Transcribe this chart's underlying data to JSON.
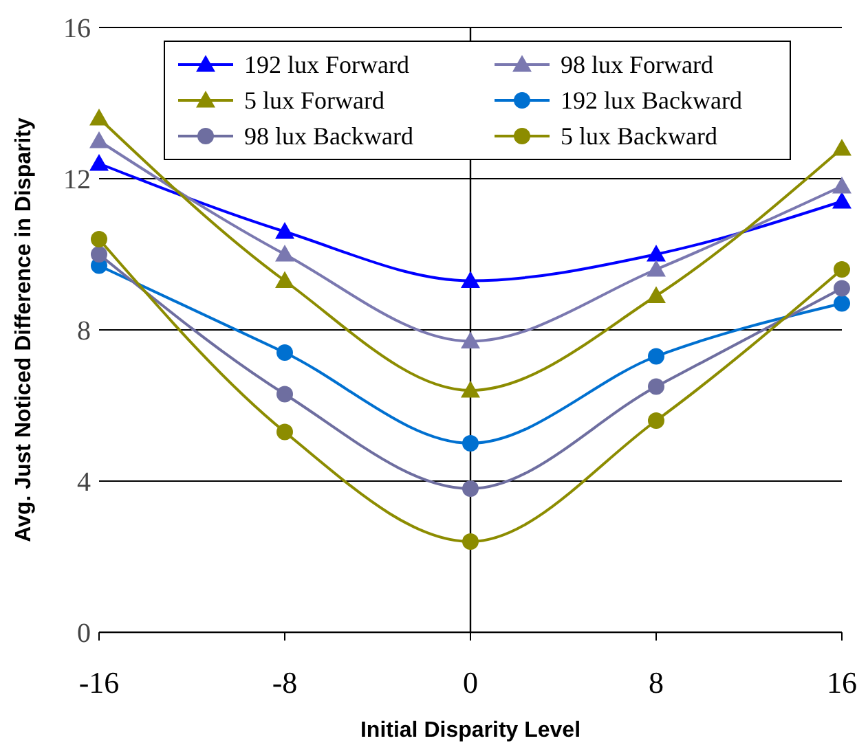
{
  "chart_data": {
    "type": "line",
    "xlabel": "Initial Disparity Level",
    "ylabel": "Avg. Just Noticed Difference in Disparity",
    "x": [
      -16,
      -8,
      0,
      8,
      16
    ],
    "xlim": [
      -16,
      16
    ],
    "xticks": [
      -16,
      -8,
      0,
      8,
      16
    ],
    "ylim": [
      0,
      16
    ],
    "yticks": [
      0,
      4,
      8,
      12,
      16
    ],
    "grid": "y",
    "legend": "top",
    "series": [
      {
        "name": "192 lux Forward",
        "color": "#0000ff",
        "marker": "triangle",
        "values": [
          12.4,
          10.6,
          9.3,
          10.0,
          11.4
        ]
      },
      {
        "name": "98 lux Forward",
        "color": "#7a78b0",
        "marker": "triangle",
        "values": [
          13.0,
          10.0,
          7.7,
          9.6,
          11.8
        ]
      },
      {
        "name": "5 lux Forward",
        "color": "#8c8c00",
        "marker": "triangle",
        "values": [
          13.6,
          9.3,
          6.4,
          8.9,
          12.8
        ]
      },
      {
        "name": "192 lux Backward",
        "color": "#0070d0",
        "marker": "circle",
        "values": [
          9.7,
          7.4,
          5.0,
          7.3,
          8.7
        ]
      },
      {
        "name": "98 lux Backward",
        "color": "#6e6ea0",
        "marker": "circle",
        "values": [
          10.0,
          6.3,
          3.8,
          6.5,
          9.1
        ]
      },
      {
        "name": "5 lux Backward",
        "color": "#8c8c00",
        "marker": "circle",
        "values": [
          10.4,
          5.3,
          2.4,
          5.6,
          9.6
        ]
      }
    ]
  }
}
